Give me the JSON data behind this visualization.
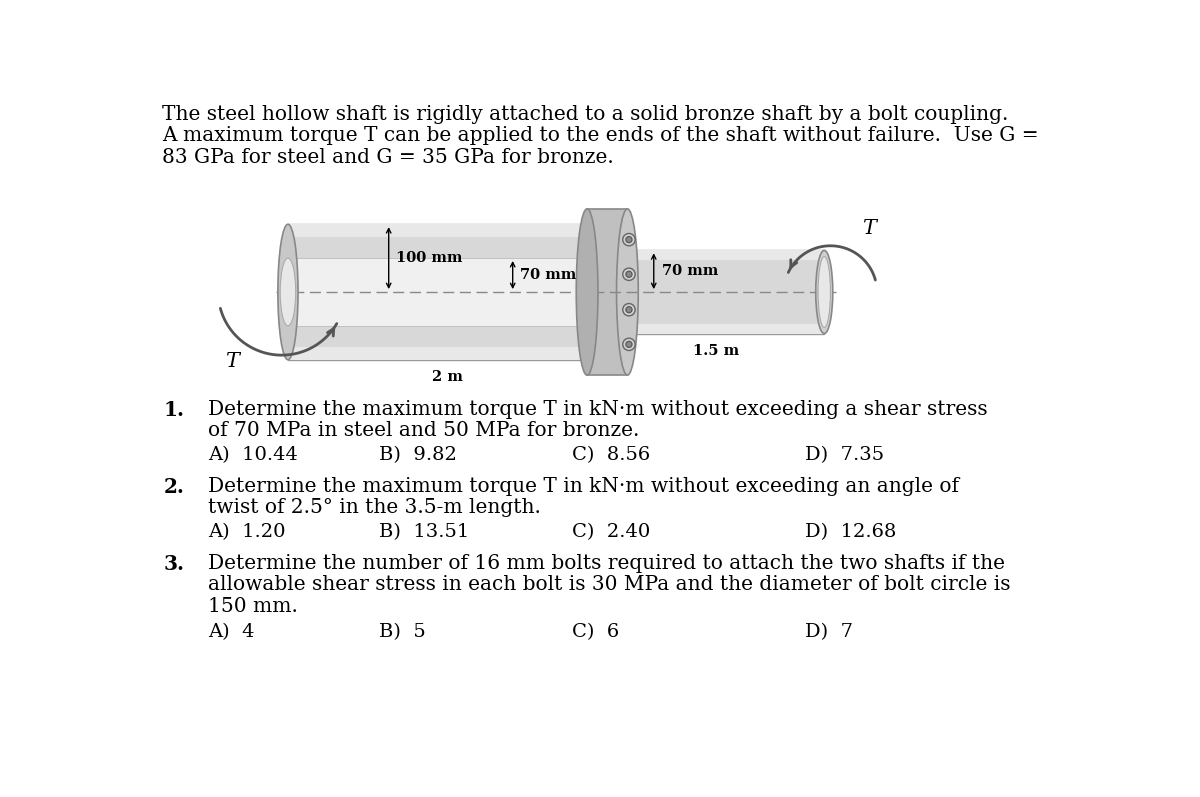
{
  "title_text": "The steel hollow shaft is rigidly attached to a solid bronze shaft by a bolt coupling.\nA maximum torque T can be applied to the ends of the shaft without failure.  Use G =\n83 GPa for steel and G = 35 GPa for bronze.",
  "q1_number": "1.",
  "q1_text": "Determine the maximum torque T in kN·m without exceeding a shear stress\nof 70 MPa in steel and 50 MPa for bronze.",
  "q1_answers": [
    "A)  10.44",
    "B)  9.82",
    "C)  8.56",
    "D)  7.35"
  ],
  "q2_number": "2.",
  "q2_text": "Determine the maximum torque T in kN·m without exceeding an angle of\ntwist of 2.5° in the 3.5-m length.",
  "q2_answers": [
    "A)  1.20",
    "B)  13.51",
    "C)  2.40",
    "D)  12.68"
  ],
  "q3_number": "3.",
  "q3_text": "Determine the number of 16 mm bolts required to attach the two shafts if the\nallowable shear stress in each bolt is 30 MPa and the diameter of bolt circle is\n150 mm.",
  "q3_answers": [
    "A)  4",
    "B)  5",
    "C)  6",
    "D)  7"
  ],
  "dim1": "100 mm",
  "dim2": "70 mm",
  "dim3": "70 mm",
  "len1": "2 m",
  "len2": "1.5 m",
  "T_label": "T",
  "bg_color": "#ffffff",
  "text_color": "#000000",
  "main_fontsize": 14.5,
  "answer_fontsize": 14,
  "number_fontsize": 14.5
}
